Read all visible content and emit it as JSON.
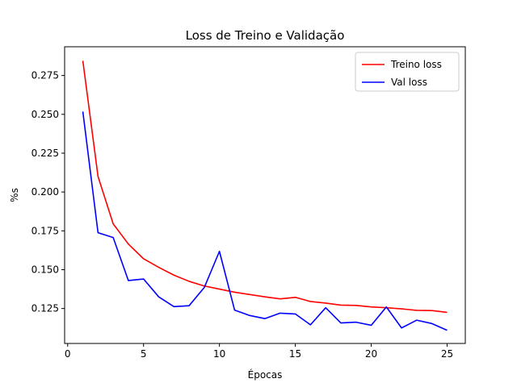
{
  "chart_data": {
    "type": "line",
    "title": "Loss de Treino e Validação",
    "xlabel": "Épocas",
    "ylabel": "%s",
    "xlim": [
      -0.2,
      26.2
    ],
    "ylim": [
      0.1025,
      0.2935
    ],
    "x_ticks": [
      0,
      5,
      10,
      15,
      20,
      25
    ],
    "x_tick_labels": [
      "0",
      "5",
      "10",
      "15",
      "20",
      "25"
    ],
    "y_ticks": [
      0.125,
      0.15,
      0.175,
      0.2,
      0.225,
      0.25,
      0.275
    ],
    "y_tick_labels": [
      "0.125",
      "0.150",
      "0.175",
      "0.200",
      "0.225",
      "0.250",
      "0.275"
    ],
    "grid": false,
    "legend_position": "top-right",
    "x": [
      1,
      2,
      3,
      4,
      5,
      6,
      7,
      8,
      9,
      10,
      11,
      12,
      13,
      14,
      15,
      16,
      17,
      18,
      19,
      20,
      21,
      22,
      23,
      24,
      25
    ],
    "series": [
      {
        "name": "Treino loss",
        "color": "#ff0000",
        "values": [
          0.2845,
          0.21,
          0.1795,
          0.1665,
          0.157,
          0.1515,
          0.1465,
          0.1425,
          0.1395,
          0.1375,
          0.1355,
          0.134,
          0.1325,
          0.1312,
          0.1322,
          0.1295,
          0.1285,
          0.1272,
          0.127,
          0.126,
          0.1255,
          0.1248,
          0.1238,
          0.1237,
          0.1225
        ]
      },
      {
        "name": "Val loss",
        "color": "#0000ff",
        "values": [
          0.2518,
          0.1738,
          0.1707,
          0.143,
          0.144,
          0.1325,
          0.1262,
          0.1268,
          0.1385,
          0.1618,
          0.124,
          0.1205,
          0.1185,
          0.122,
          0.1215,
          0.1145,
          0.1255,
          0.1157,
          0.1162,
          0.1142,
          0.126,
          0.1125,
          0.1175,
          0.1153,
          0.111
        ]
      }
    ]
  }
}
